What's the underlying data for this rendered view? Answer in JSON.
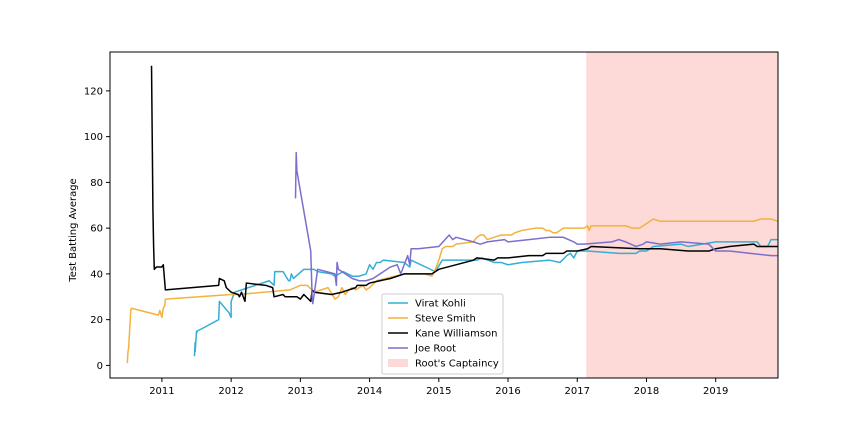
{
  "chart_data": {
    "type": "line",
    "title": "",
    "xlabel": "",
    "ylabel": "Test Batting Average",
    "xlim": [
      2010.25,
      2019.9
    ],
    "ylim": [
      -5.5,
      137
    ],
    "x_ticks": [
      2011,
      2012,
      2013,
      2014,
      2015,
      2016,
      2017,
      2018,
      2019
    ],
    "x_tick_labels": [
      "2011",
      "2012",
      "2013",
      "2014",
      "2015",
      "2016",
      "2017",
      "2018",
      "2019"
    ],
    "y_ticks": [
      0,
      20,
      40,
      60,
      80,
      100,
      120
    ],
    "y_tick_labels": [
      "0",
      "20",
      "40",
      "60",
      "80",
      "100",
      "120"
    ],
    "grid": false,
    "legend_position": "lower-center",
    "shaded_region": {
      "name": "Root's Captaincy",
      "x_start": 2017.13,
      "x_end": 2019.9,
      "color": "#fdd9d7"
    },
    "series": [
      {
        "name": "Virat Kohli",
        "color": "#35aed6",
        "x": [
          2011.47,
          2011.48,
          2011.48,
          2011.5,
          2011.5,
          2011.51,
          2011.82,
          2011.83,
          2011.97,
          2012.0,
          2012.0,
          2012.05,
          2012.55,
          2012.62,
          2012.63,
          2012.75,
          2012.83,
          2012.85,
          2012.87,
          2012.9,
          2013.05,
          2013.12,
          2013.2,
          2013.25,
          2013.45,
          2013.5,
          2013.62,
          2013.75,
          2013.85,
          2013.95,
          2014.0,
          2014.05,
          2014.1,
          2014.15,
          2014.2,
          2014.5,
          2014.58,
          2014.6,
          2014.95,
          2015.05,
          2015.55,
          2015.62,
          2015.8,
          2015.9,
          2016.0,
          2016.2,
          2016.6,
          2016.75,
          2016.85,
          2016.9,
          2016.95,
          2017.0,
          2017.15,
          2017.6,
          2017.85,
          2017.9,
          2018.0,
          2018.1,
          2018.5,
          2018.6,
          2019.0,
          2019.6,
          2019.65,
          2019.75,
          2019.8,
          2019.9
        ],
        "y": [
          4,
          10,
          6,
          15,
          14,
          15,
          20,
          28,
          23,
          21,
          28,
          32,
          37,
          35,
          41,
          41,
          37,
          37,
          40,
          38,
          42,
          42,
          42,
          41,
          40,
          39,
          41,
          39,
          39,
          40,
          44,
          42,
          45,
          45,
          46,
          45,
          43,
          46,
          41,
          46,
          46,
          47,
          45,
          45,
          44,
          45,
          46,
          45,
          48,
          49,
          47,
          50,
          50,
          49,
          49,
          50,
          50,
          52,
          53,
          52,
          54,
          54,
          52,
          52,
          55,
          55
        ]
      },
      {
        "name": "Steve Smith",
        "color": "#f2b23e",
        "x": [
          2010.5,
          2010.51,
          2010.52,
          2010.55,
          2010.56,
          2010.95,
          2010.97,
          2011.0,
          2011.02,
          2011.04,
          2011.05,
          2012.0,
          2012.1,
          2012.85,
          2013.0,
          2013.1,
          2013.2,
          2013.4,
          2013.5,
          2013.55,
          2013.6,
          2013.65,
          2013.7,
          2013.75,
          2013.8,
          2013.85,
          2013.9,
          2013.95,
          2014.0,
          2014.1,
          2014.5,
          2014.8,
          2014.9,
          2014.95,
          2015.0,
          2015.05,
          2015.1,
          2015.2,
          2015.25,
          2015.5,
          2015.55,
          2015.6,
          2015.65,
          2015.7,
          2015.8,
          2015.9,
          2016.0,
          2016.05,
          2016.1,
          2016.2,
          2016.4,
          2016.5,
          2016.55,
          2016.6,
          2016.65,
          2016.7,
          2016.8,
          2016.85,
          2016.9,
          2016.95,
          2017.0,
          2017.1,
          2017.15,
          2017.17,
          2017.2,
          2017.5,
          2017.7,
          2017.8,
          2017.9,
          2017.95,
          2018.0,
          2018.05,
          2018.1,
          2018.2,
          2019.55,
          2019.65,
          2019.8,
          2019.9
        ],
        "y": [
          1,
          6,
          8,
          24,
          25,
          22,
          24,
          21,
          25,
          26,
          29,
          31,
          31,
          33,
          35,
          35,
          32,
          34,
          29,
          30,
          34,
          31,
          33,
          34,
          33,
          34,
          35,
          33,
          34,
          37,
          40,
          40,
          39,
          42,
          46,
          51,
          52,
          52,
          53,
          54,
          56,
          57,
          57,
          55,
          56,
          57,
          57,
          57,
          58,
          59,
          60,
          60,
          59,
          59,
          58,
          58,
          60,
          60,
          60,
          60,
          60,
          60,
          61,
          59,
          61,
          61,
          61,
          60,
          60,
          61,
          62,
          63,
          64,
          63,
          63,
          64,
          64,
          63
        ]
      },
      {
        "name": "Kane Williamson",
        "color": "#000000",
        "x": [
          2010.85,
          2010.87,
          2010.88,
          2010.89,
          2010.92,
          2011.0,
          2011.02,
          2011.05,
          2011.82,
          2011.83,
          2011.9,
          2011.93,
          2012.0,
          2012.1,
          2012.12,
          2012.15,
          2012.2,
          2012.22,
          2012.5,
          2012.6,
          2012.62,
          2012.75,
          2012.78,
          2012.95,
          2013.0,
          2013.05,
          2013.15,
          2013.17,
          2013.2,
          2013.45,
          2013.6,
          2013.8,
          2013.82,
          2013.95,
          2014.0,
          2014.15,
          2014.3,
          2014.5,
          2014.7,
          2014.9,
          2015.0,
          2015.5,
          2015.55,
          2015.8,
          2015.85,
          2016.0,
          2016.3,
          2016.5,
          2016.55,
          2016.8,
          2016.85,
          2017.0,
          2017.15,
          2017.2,
          2017.9,
          2018.0,
          2018.2,
          2018.6,
          2018.9,
          2019.0,
          2019.2,
          2019.55,
          2019.6,
          2019.9
        ],
        "y": [
          131,
          68,
          52,
          42,
          43,
          43,
          44,
          33,
          35,
          38,
          37,
          34,
          32,
          31,
          30,
          32,
          28,
          36,
          35,
          34,
          30,
          31,
          30,
          30,
          29,
          31,
          28,
          33,
          32,
          31,
          32,
          34,
          35,
          35,
          36,
          37,
          38,
          40,
          40,
          40,
          42,
          46,
          47,
          46,
          47,
          47,
          48,
          48,
          49,
          49,
          50,
          50,
          51,
          52,
          51,
          51,
          51,
          50,
          50,
          51,
          52,
          53,
          52,
          52
        ]
      },
      {
        "name": "Joe Root",
        "color": "#7b6fce",
        "x": [
          2012.93,
          2012.94,
          2012.95,
          2013.15,
          2013.17,
          2013.18,
          2013.25,
          2013.5,
          2013.52,
          2013.53,
          2013.55,
          2013.65,
          2013.75,
          2013.85,
          2013.95,
          2014.05,
          2014.3,
          2014.4,
          2014.45,
          2014.55,
          2014.58,
          2014.6,
          2014.7,
          2015.0,
          2015.15,
          2015.2,
          2015.25,
          2015.5,
          2015.6,
          2015.7,
          2015.95,
          2016.0,
          2016.3,
          2016.6,
          2016.8,
          2016.95,
          2017.0,
          2017.1,
          2017.5,
          2017.6,
          2017.7,
          2017.85,
          2017.95,
          2018.0,
          2018.2,
          2018.5,
          2018.9,
          2019.0,
          2019.2,
          2019.5,
          2019.8,
          2019.9
        ],
        "y": [
          73,
          93,
          85,
          50,
          30,
          27,
          42,
          40,
          35,
          45,
          42,
          40,
          38,
          37,
          37,
          38,
          43,
          44,
          40,
          48,
          44,
          51,
          51,
          52,
          57,
          55,
          56,
          54,
          53,
          54,
          55,
          54,
          55,
          56,
          56,
          54,
          53,
          53,
          54,
          55,
          54,
          52,
          53,
          54,
          53,
          54,
          53,
          50,
          50,
          49,
          48,
          48
        ]
      }
    ]
  }
}
